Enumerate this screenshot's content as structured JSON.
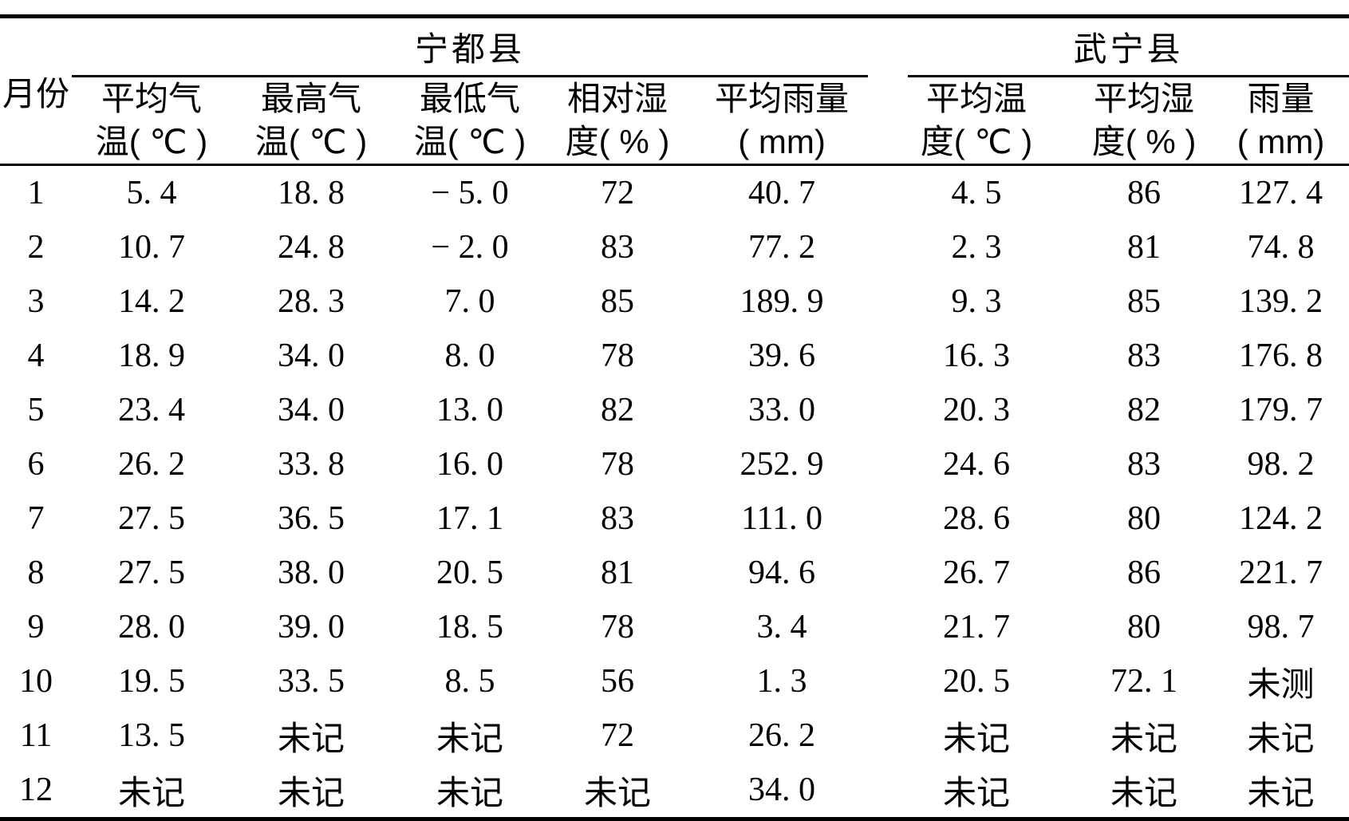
{
  "table": {
    "corner_header": "月份",
    "groups": [
      {
        "label": "宁都县"
      },
      {
        "label": "武宁县"
      }
    ],
    "columns": [
      {
        "line1": "平均气",
        "line2": "温( ℃ )"
      },
      {
        "line1": "最高气",
        "line2": "温( ℃ )"
      },
      {
        "line1": "最低气",
        "line2": "温( ℃ )"
      },
      {
        "line1": "相对湿",
        "line2": "度( % )"
      },
      {
        "line1": "平均雨量",
        "line2": "( mm)"
      },
      {
        "line1": "平均温",
        "line2": "度( ℃ )"
      },
      {
        "line1": "平均湿",
        "line2": "度( % )"
      },
      {
        "line1": "雨量",
        "line2": "( mm)"
      }
    ],
    "rows": [
      [
        "1",
        "5. 4",
        "18. 8",
        "− 5. 0",
        "72",
        "40. 7",
        "4. 5",
        "86",
        "127. 4"
      ],
      [
        "2",
        "10. 7",
        "24. 8",
        "− 2. 0",
        "83",
        "77. 2",
        "2. 3",
        "81",
        "74. 8"
      ],
      [
        "3",
        "14. 2",
        "28. 3",
        "7. 0",
        "85",
        "189. 9",
        "9. 3",
        "85",
        "139. 2"
      ],
      [
        "4",
        "18. 9",
        "34. 0",
        "8. 0",
        "78",
        "39. 6",
        "16. 3",
        "83",
        "176. 8"
      ],
      [
        "5",
        "23. 4",
        "34. 0",
        "13. 0",
        "82",
        "33. 0",
        "20. 3",
        "82",
        "179. 7"
      ],
      [
        "6",
        "26. 2",
        "33. 8",
        "16. 0",
        "78",
        "252. 9",
        "24. 6",
        "83",
        "98. 2"
      ],
      [
        "7",
        "27. 5",
        "36. 5",
        "17. 1",
        "83",
        "111. 0",
        "28. 6",
        "80",
        "124. 2"
      ],
      [
        "8",
        "27. 5",
        "38. 0",
        "20. 5",
        "81",
        "94. 6",
        "26. 7",
        "86",
        "221. 7"
      ],
      [
        "9",
        "28. 0",
        "39. 0",
        "18. 5",
        "78",
        "3. 4",
        "21. 7",
        "80",
        "98. 7"
      ],
      [
        "10",
        "19. 5",
        "33. 5",
        "8. 5",
        "56",
        "1. 3",
        "20. 5",
        "72. 1",
        "未测"
      ],
      [
        "11",
        "13. 5",
        "未记",
        "未记",
        "72",
        "26. 2",
        "未记",
        "未记",
        "未记"
      ],
      [
        "12",
        "未记",
        "未记",
        "未记",
        "未记",
        "34. 0",
        "未记",
        "未记",
        "未记"
      ]
    ],
    "colors": {
      "text": "#000000",
      "background": "#ffffff",
      "rule": "#000000"
    }
  }
}
